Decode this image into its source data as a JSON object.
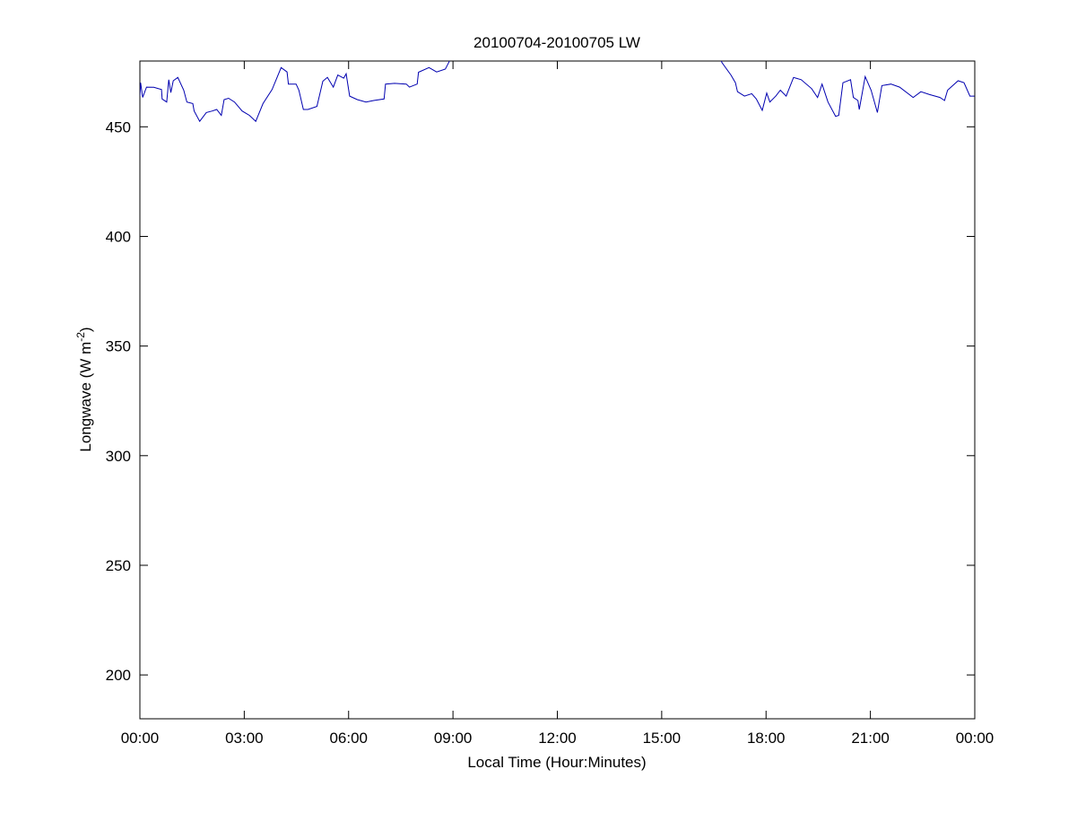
{
  "chart_data": {
    "type": "line",
    "title": "20100704-20100705 LW",
    "xlabel": "Local Time (Hour:Minutes)",
    "ylabel_main": "Longwave (W m",
    "ylabel_sup": "-2",
    "ylabel_close": ")",
    "xlim_hours": [
      0,
      24
    ],
    "ylim": [
      180,
      480
    ],
    "x_ticks_hours": [
      0,
      3,
      6,
      9,
      12,
      15,
      18,
      21,
      24
    ],
    "x_tick_labels": [
      "00:00",
      "03:00",
      "06:00",
      "09:00",
      "12:00",
      "15:00",
      "18:00",
      "21:00",
      "00:00"
    ],
    "y_ticks": [
      200,
      250,
      300,
      350,
      400,
      450
    ],
    "y_tick_labels": [
      "200",
      "250",
      "300",
      "350",
      "400",
      "450"
    ],
    "grid": false,
    "line_color": "#0000b0",
    "series": [
      {
        "x_hours": [
          0,
          0.02,
          0.08,
          0.19,
          0.4,
          0.62,
          0.64,
          0.77,
          0.83,
          0.89,
          0.96,
          1.09,
          1.26,
          1.35,
          1.52,
          1.56,
          1.72,
          1.91,
          2.08,
          2.21,
          2.34,
          2.42,
          2.55,
          2.72,
          2.94,
          3.15,
          3.33,
          3.54,
          3.8,
          4.06,
          4.23,
          4.27,
          4.49,
          4.57,
          4.7,
          4.83,
          5.09,
          5.26,
          5.39,
          5.56,
          5.69,
          5.86,
          5.93,
          6.03,
          6.25,
          6.5,
          6.72,
          7.02,
          7.06,
          7.32,
          7.66,
          7.75,
          7.97,
          8.01,
          8.31,
          8.53,
          8.78,
          8.89,
          9.2,
          16.5,
          16.73,
          16.99,
          17.12,
          17.18,
          17.38,
          17.59,
          17.72,
          17.89,
          18.02,
          18.11,
          18.28,
          18.41,
          18.58,
          18.79,
          19.01,
          19.31,
          19.48,
          19.61,
          19.78,
          20.0,
          20.09,
          20.21,
          20.43,
          20.51,
          20.64,
          20.68,
          20.85,
          21.02,
          21.2,
          21.33,
          21.59,
          21.84,
          22.23,
          22.45,
          22.7,
          23.0,
          23.13,
          23.22,
          23.52,
          23.69,
          23.86,
          23.99
        ],
        "values": [
          464,
          470.1,
          463.4,
          468.1,
          468,
          467,
          462.7,
          461.3,
          471.5,
          465.6,
          471,
          472.5,
          466.7,
          461.3,
          460.6,
          457.2,
          452.5,
          456.5,
          457.2,
          457.9,
          455.2,
          462.4,
          463,
          461.3,
          457.2,
          455.2,
          452.5,
          460.6,
          467,
          477,
          475,
          469.5,
          469.5,
          466.7,
          457.9,
          457.9,
          459.3,
          470.8,
          472.5,
          468.1,
          473.6,
          472.2,
          474.2,
          464,
          462.4,
          461.3,
          462,
          462.7,
          469.5,
          469.8,
          469.5,
          468.1,
          469.5,
          474.9,
          477,
          475,
          476.3,
          479.7,
          490,
          490,
          479.3,
          473.6,
          470.1,
          466,
          464,
          465.1,
          462.7,
          457.5,
          465.4,
          461.3,
          464,
          466.7,
          464,
          472.5,
          471.5,
          467.4,
          463.4,
          469.5,
          461.3,
          454.8,
          455.2,
          470.1,
          471.5,
          463.4,
          462,
          457.9,
          472.9,
          466.7,
          456.5,
          468.8,
          469.5,
          468.1,
          463.4,
          466,
          464.7,
          463.4,
          462,
          466.7,
          471,
          470.1,
          464,
          464
        ]
      }
    ]
  }
}
